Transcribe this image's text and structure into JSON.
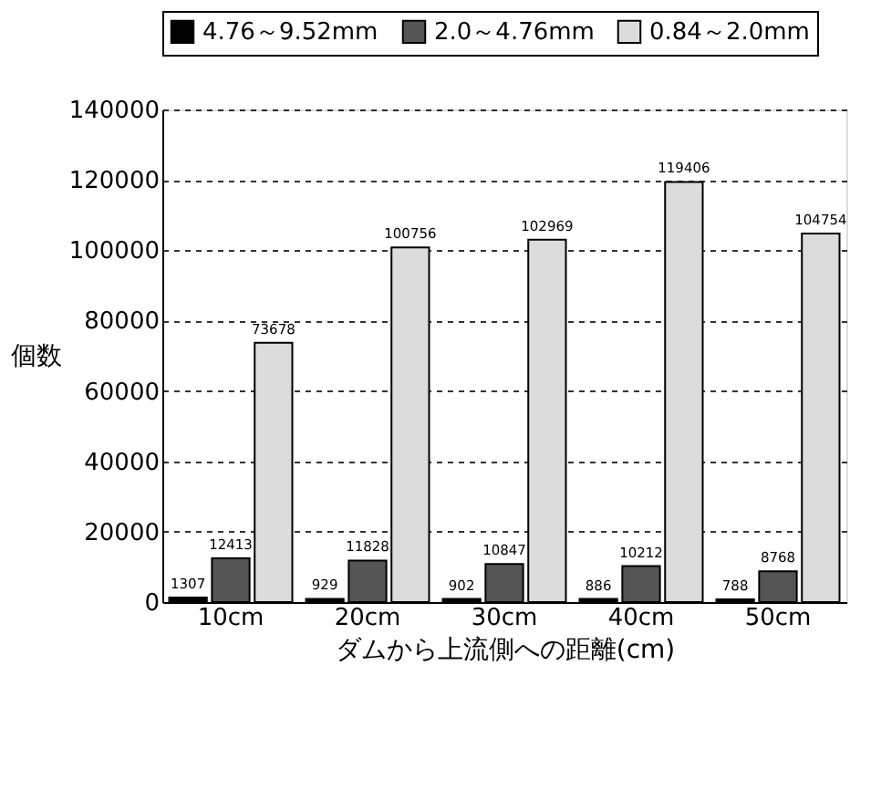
{
  "chart_data": {
    "type": "bar",
    "xlabel": "ダムから上流側への距離(cm)",
    "ylabel": "個数",
    "categories": [
      "10cm",
      "20cm",
      "30cm",
      "40cm",
      "50cm"
    ],
    "series": [
      {
        "name": "4.76～9.52mm",
        "color": "#000000",
        "values": [
          1307,
          929,
          902,
          886,
          788
        ]
      },
      {
        "name": "2.0～4.76mm",
        "color": "#555555",
        "values": [
          12413,
          11828,
          10847,
          10212,
          8768
        ]
      },
      {
        "name": "0.84～2.0mm",
        "color": "#dcdcdc",
        "values": [
          73678,
          100756,
          102969,
          119406,
          104754
        ]
      }
    ],
    "ylim": [
      0,
      140000
    ],
    "yticks": [
      0,
      20000,
      40000,
      60000,
      80000,
      100000,
      120000,
      140000
    ],
    "grid": "y",
    "legend": "top left",
    "data_labels": true
  }
}
